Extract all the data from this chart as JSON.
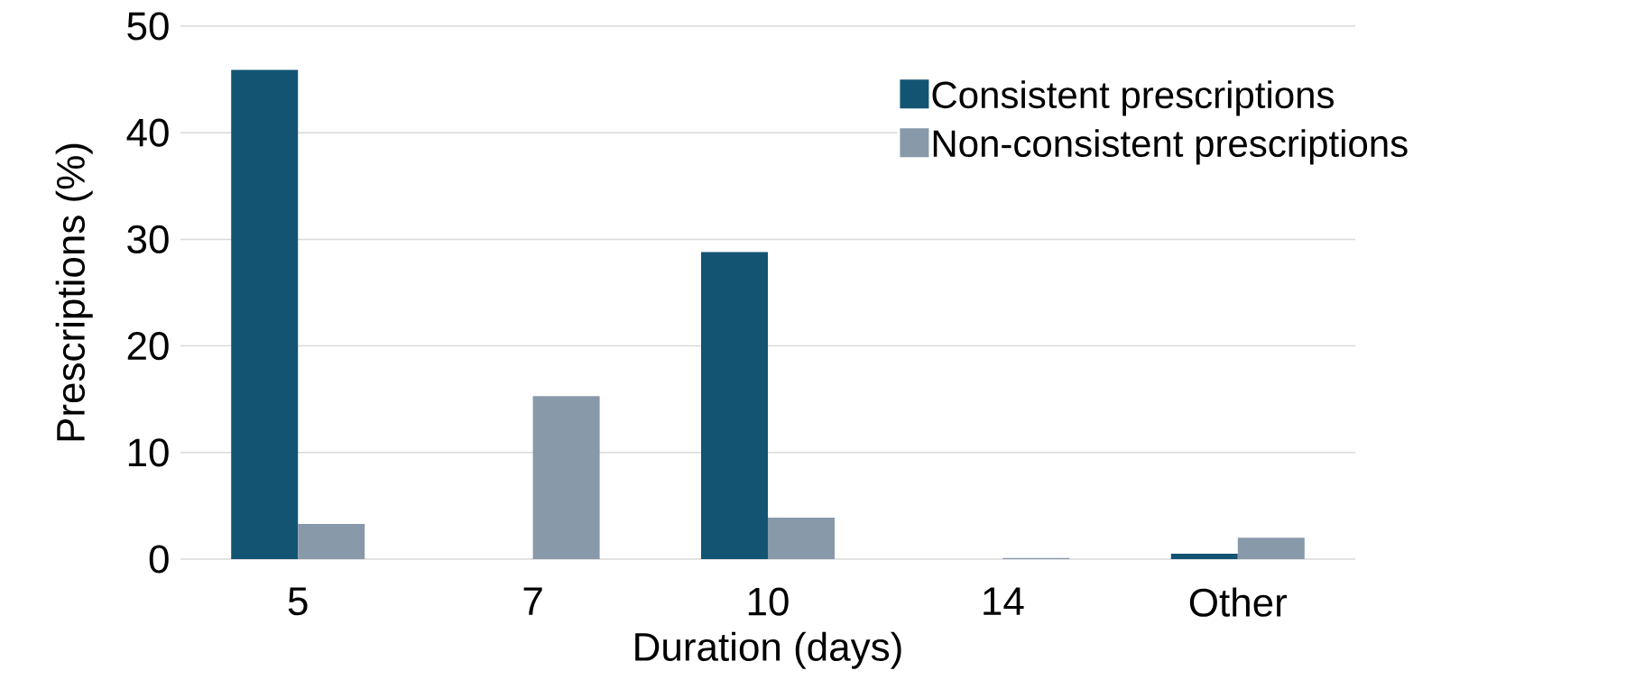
{
  "chart_data": {
    "type": "bar",
    "xlabel": "Duration (days)",
    "ylabel": "Prescriptions (%)",
    "categories": [
      "5",
      "7",
      "10",
      "14",
      "Other"
    ],
    "series": [
      {
        "name": "Consistent prescriptions",
        "color": "#135473",
        "values": [
          45.9,
          0,
          28.8,
          0,
          0.5
        ]
      },
      {
        "name": "Non-consistent prescriptions",
        "color": "#8899aa",
        "values": [
          3.3,
          15.3,
          3.9,
          0.1,
          2.0
        ]
      }
    ],
    "ylim": [
      0,
      50
    ],
    "yticks": [
      0,
      10,
      20,
      30,
      40,
      50
    ],
    "grid": "y",
    "legend": "top right"
  }
}
